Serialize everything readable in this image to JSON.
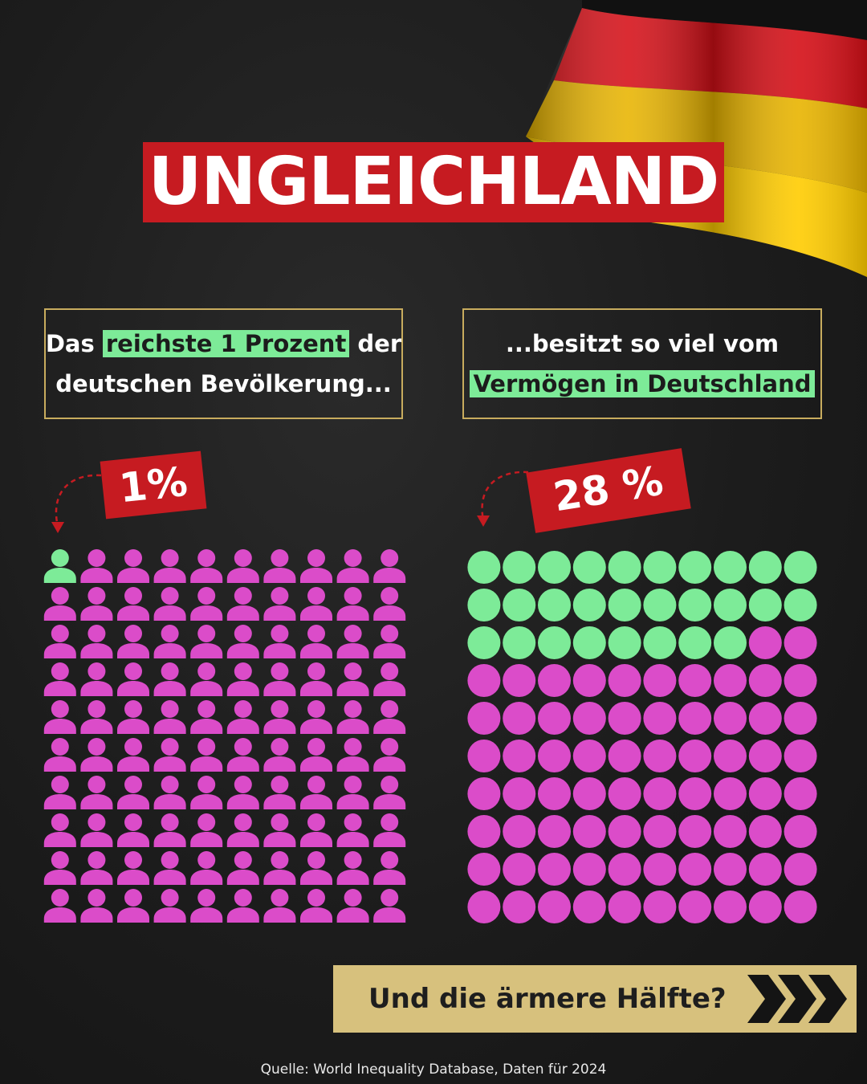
{
  "title": "UNGLEICHLAND",
  "left_box": {
    "line1_pre": "Das",
    "line1_highlight": "reichste 1 Prozent",
    "line1_post": "der",
    "line2": "deutschen Bevölkerung..."
  },
  "right_box": {
    "line1": "...besitzt so viel vom",
    "line2_highlight": "Vermögen in Deutschland"
  },
  "badges": {
    "left": "1%",
    "right": "28 %"
  },
  "cta": {
    "label": "Und die ärmere Hälfte?",
    "icon": "triple-chevron-right-icon"
  },
  "source": "Quelle: World Inequality Database, Daten für 2024",
  "colors": {
    "highlight_green": "#7deb98",
    "magenta": "#db4cc9",
    "red": "#c61b21",
    "gold": "#c8ac5e"
  },
  "chart_data": [
    {
      "type": "waffle",
      "unit": "person",
      "rows": 10,
      "cols": 10,
      "total": 100,
      "highlighted": 1,
      "label": "1%"
    },
    {
      "type": "waffle",
      "unit": "circle",
      "rows": 10,
      "cols": 10,
      "total": 100,
      "highlighted": 28,
      "label": "28 %"
    }
  ]
}
